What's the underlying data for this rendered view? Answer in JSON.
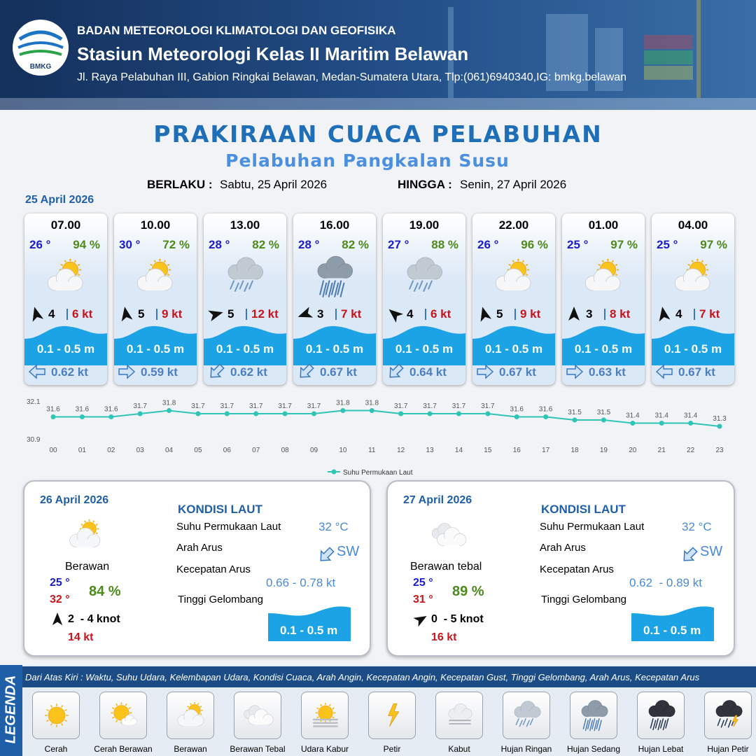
{
  "header": {
    "logo": "BMKG",
    "agency": "BADAN METEOROLOGI KLIMATOLOGI DAN GEOFISIKA",
    "station": "Stasiun Meteorologi Kelas II Maritim Belawan",
    "address": "Jl. Raya Pelabuhan III, Gabion Ringkai Belawan, Medan-Sumatera Utara, Tlp:(061)6940340,IG: bmkg.belawan"
  },
  "title": "PRAKIRAAN CUACA PELABUHAN",
  "subtitle": "Pelabuhan Pangkalan Susu",
  "validity": {
    "from_label": "BERLAKU :",
    "from": "Sabtu, 25 April 2026",
    "to_label": "HINGGA :",
    "to": "Senin, 27 April 2026"
  },
  "day1": {
    "date": "25 April 2026",
    "slots": [
      {
        "time": "07.00",
        "temp": "26 °",
        "humidity": "94 %",
        "icon": "berawan",
        "wind_dir": -15,
        "wind": "4",
        "gust": "6 kt",
        "wave": "0.1 - 0.5 m",
        "current_dir": 270,
        "current": "0.62 kt"
      },
      {
        "time": "10.00",
        "temp": "30 °",
        "humidity": "72 %",
        "icon": "berawan",
        "wind_dir": -10,
        "wind": "5",
        "gust": "9 kt",
        "wave": "0.1 - 0.5 m",
        "current_dir": 90,
        "current": "0.59 kt"
      },
      {
        "time": "13.00",
        "temp": "28 °",
        "humidity": "82 %",
        "icon": "hujan-ringan",
        "wind_dir": 75,
        "wind": "5",
        "gust": "12 kt",
        "wave": "0.1 - 0.5 m",
        "current_dir": 225,
        "current": "0.62 kt"
      },
      {
        "time": "16.00",
        "temp": "28 °",
        "humidity": "82 %",
        "icon": "hujan-sedang",
        "wind_dir": 250,
        "wind": "3",
        "gust": "7 kt",
        "wave": "0.1 - 0.5 m",
        "current_dir": 225,
        "current": "0.67 kt"
      },
      {
        "time": "19.00",
        "temp": "27 °",
        "humidity": "88 %",
        "icon": "hujan-ringan",
        "wind_dir": -50,
        "wind": "4",
        "gust": "6 kt",
        "wave": "0.1 - 0.5 m",
        "current_dir": 225,
        "current": "0.64 kt"
      },
      {
        "time": "22.00",
        "temp": "26 °",
        "humidity": "96 %",
        "icon": "berawan",
        "wind_dir": -15,
        "wind": "5",
        "gust": "9 kt",
        "wave": "0.1 - 0.5 m",
        "current_dir": 90,
        "current": "0.67 kt"
      },
      {
        "time": "01.00",
        "temp": "25 °",
        "humidity": "97 %",
        "icon": "berawan",
        "wind_dir": 0,
        "wind": "3",
        "gust": "8 kt",
        "wave": "0.1 - 0.5 m",
        "current_dir": 90,
        "current": "0.63 kt"
      },
      {
        "time": "04.00",
        "temp": "25 °",
        "humidity": "97 %",
        "icon": "berawan",
        "wind_dir": -10,
        "wind": "4",
        "gust": "7 kt",
        "wave": "0.1 - 0.5 m",
        "current_dir": 270,
        "current": "0.67 kt"
      }
    ]
  },
  "chart_data": {
    "type": "line",
    "categories": [
      "00",
      "01",
      "02",
      "03",
      "04",
      "05",
      "06",
      "07",
      "08",
      "09",
      "10",
      "11",
      "12",
      "13",
      "14",
      "15",
      "16",
      "17",
      "18",
      "19",
      "20",
      "21",
      "22",
      "23"
    ],
    "series": [
      {
        "name": "Suhu Permukaan Laut",
        "color": "#2ec4b6",
        "values": [
          31.6,
          31.6,
          31.6,
          31.7,
          31.8,
          31.7,
          31.7,
          31.7,
          31.7,
          31.7,
          31.8,
          31.8,
          31.7,
          31.7,
          31.7,
          31.7,
          31.6,
          31.6,
          31.5,
          31.5,
          31.4,
          31.4,
          31.4,
          31.3
        ]
      }
    ],
    "ylim": [
      30.9,
      32.1
    ],
    "yticks": [
      30.9,
      32.1
    ],
    "grid": false,
    "legend": "bottom"
  },
  "days": [
    {
      "date": "26 April 2026",
      "icon": "berawan",
      "weather": "Berawan",
      "temp_min": "25 °",
      "temp_max": "32 °",
      "humidity": "84 %",
      "wind": "2  - 4 knot",
      "gust": "14 kt",
      "sea": {
        "heading": "KONDISI LAUT",
        "sst_label": "Suhu Permukaan Laut",
        "sst": "32 °C",
        "dir_label": "Arah Arus",
        "dir": "SW",
        "speed_label": "Kecepatan Arus",
        "speed": "0.66 - 0.78 kt",
        "wave_label": "Tinggi Gelombang",
        "wave": "0.1 - 0.5 m"
      }
    },
    {
      "date": "27 April 2026",
      "icon": "berawan-tebal",
      "weather": "Berawan tebal",
      "temp_min": "25 °",
      "temp_max": "31 °",
      "humidity": "89 %",
      "wind": "0  - 5 knot",
      "gust": "16 kt",
      "sea": {
        "heading": "KONDISI LAUT",
        "sst_label": "Suhu Permukaan Laut",
        "sst": "32 °C",
        "dir_label": "Arah Arus",
        "dir": "SW",
        "speed_label": "Kecepatan Arus",
        "speed": "0.62  - 0.89 kt",
        "wave_label": "Tinggi Gelombang",
        "wave": "0.1 - 0.5 m"
      }
    }
  ],
  "legend": {
    "title": "LEGENDA",
    "description": "Dari Atas Kiri : Waktu, Suhu Udara, Kelembapan Udara, Kondisi Cuaca, Arah Angin, Kecepatan Angin, Kecepatan Gust, Tinggi Gelombang, Arah Arus, Kecepatan Arus",
    "items": [
      {
        "name": "Cerah",
        "icon": "cerah"
      },
      {
        "name": "Cerah Berawan",
        "icon": "cerah-berawan"
      },
      {
        "name": "Berawan",
        "icon": "berawan"
      },
      {
        "name": "Berawan Tebal",
        "icon": "berawan-tebal"
      },
      {
        "name": "Udara Kabur",
        "icon": "udara-kabur"
      },
      {
        "name": "Petir",
        "icon": "petir"
      },
      {
        "name": "Kabut",
        "icon": "kabut"
      },
      {
        "name": "Hujan Ringan",
        "icon": "hujan-ringan"
      },
      {
        "name": "Hujan Sedang",
        "icon": "hujan-sedang"
      },
      {
        "name": "Hujan Lebat",
        "icon": "hujan-lebat"
      },
      {
        "name": "Hujan Petir",
        "icon": "hujan-petir"
      }
    ]
  }
}
